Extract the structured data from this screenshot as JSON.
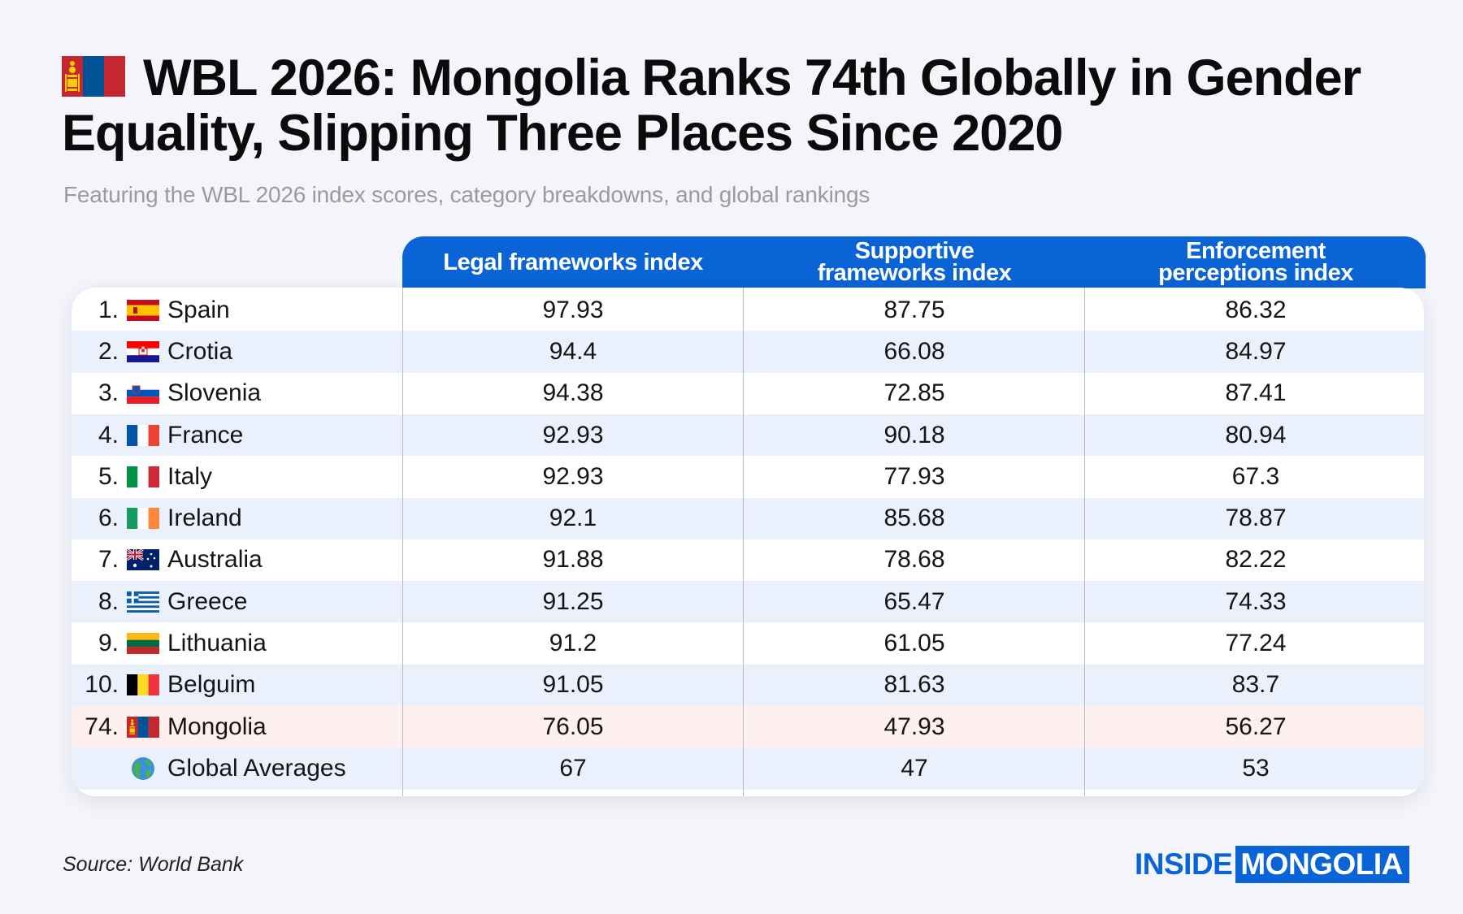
{
  "title": "WBL 2026: Mongolia Ranks 74th Globally in Gender Equality, Slipping Three Places Since 2020",
  "subtitle": "Featuring the WBL 2026 index scores, category breakdowns, and global rankings",
  "source": "Source: World Bank",
  "logo": {
    "part1": "INSIDE",
    "part2": "MONGOLIA"
  },
  "colors": {
    "accent": "#0a64d6",
    "background": "#f4f4fb",
    "row_alt": "#eaf1fd",
    "row_highlight": "#fdf0ef"
  },
  "chart_data": {
    "type": "table",
    "title": "WBL 2026: Mongolia Ranks 74th Globally in Gender Equality, Slipping Three Places Since 2020",
    "columns": [
      "Legal frameworks index",
      "Supportive frameworks index",
      "Enforcement perceptions index"
    ],
    "column_labels": [
      {
        "line1": "Legal frameworks index",
        "line2": ""
      },
      {
        "line1": "Supportive",
        "line2": "frameworks index"
      },
      {
        "line1": "Enforcement",
        "line2": "perceptions index"
      }
    ],
    "rows": [
      {
        "rank": "1.",
        "flag": "spain-flag",
        "country": "Spain",
        "values": [
          "97.93",
          "87.75",
          "86.32"
        ]
      },
      {
        "rank": "2.",
        "flag": "croatia-flag",
        "country": "Crotia",
        "values": [
          "94.4",
          "66.08",
          "84.97"
        ]
      },
      {
        "rank": "3.",
        "flag": "slovenia-flag",
        "country": "Slovenia",
        "values": [
          "94.38",
          "72.85",
          "87.41"
        ]
      },
      {
        "rank": "4.",
        "flag": "france-flag",
        "country": "France",
        "values": [
          "92.93",
          "90.18",
          "80.94"
        ]
      },
      {
        "rank": "5.",
        "flag": "italy-flag",
        "country": "Italy",
        "values": [
          "92.93",
          "77.93",
          "67.3"
        ]
      },
      {
        "rank": "6.",
        "flag": "ireland-flag",
        "country": "Ireland",
        "values": [
          "92.1",
          "85.68",
          "78.87"
        ]
      },
      {
        "rank": "7.",
        "flag": "australia-flag",
        "country": "Australia",
        "values": [
          "91.88",
          "78.68",
          "82.22"
        ]
      },
      {
        "rank": "8.",
        "flag": "greece-flag",
        "country": "Greece",
        "values": [
          "91.25",
          "65.47",
          "74.33"
        ]
      },
      {
        "rank": "9.",
        "flag": "lithuania-flag",
        "country": "Lithuania",
        "values": [
          "91.2",
          "61.05",
          "77.24"
        ]
      },
      {
        "rank": "10.",
        "flag": "belgium-flag",
        "country": "Belguim",
        "values": [
          "91.05",
          "81.63",
          "83.7"
        ]
      },
      {
        "rank": "74.",
        "flag": "mongolia-flag",
        "country": "Mongolia",
        "values": [
          "76.05",
          "47.93",
          "56.27"
        ]
      },
      {
        "rank": "",
        "flag": "globe-icon",
        "country": "Global Averages",
        "values": [
          "67",
          "47",
          "53"
        ]
      }
    ]
  }
}
